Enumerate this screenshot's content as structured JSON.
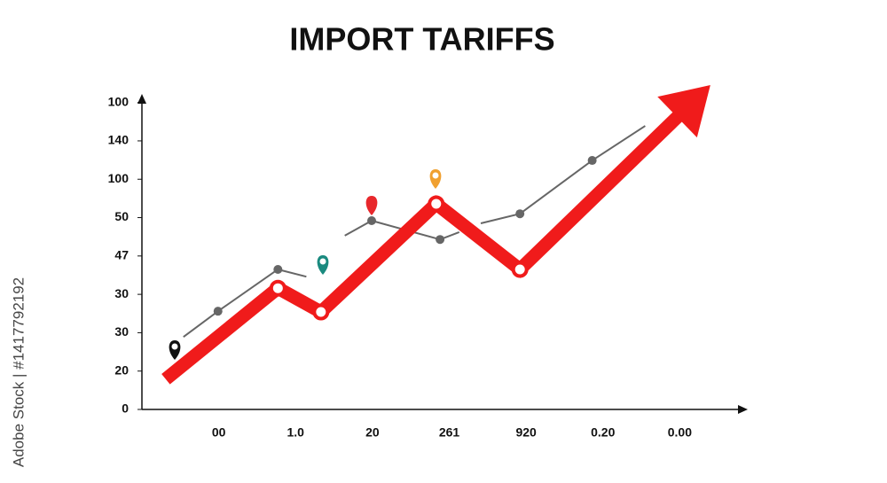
{
  "chart_data": {
    "type": "line",
    "title": "IMPORT TARIFFS",
    "watermark": "Adobe Stock | #1417792192",
    "xlim": [
      -1,
      6.85
    ],
    "xticks": [
      {
        "value": 0,
        "label": "00"
      },
      {
        "value": 1,
        "label": "1.0"
      },
      {
        "value": 2,
        "label": "20"
      },
      {
        "value": 3,
        "label": "261"
      },
      {
        "value": 4,
        "label": "920"
      },
      {
        "value": 5,
        "label": "0.20"
      },
      {
        "value": 6,
        "label": "0.00"
      }
    ],
    "ylim": [
      0,
      8.2
    ],
    "yticks": [
      0,
      {
        "value": 1,
        "label": "20"
      },
      {
        "value": 2,
        "label": "30"
      },
      {
        "value": 3,
        "label": "30"
      },
      {
        "value": 4,
        "label": "47"
      },
      {
        "value": 5,
        "label": "50"
      },
      {
        "value": 6,
        "label": "100"
      },
      {
        "value": 7,
        "label": "140"
      },
      {
        "value": 8,
        "label": "100"
      }
    ],
    "series": [
      {
        "color": "#f01b1b",
        "x": [
          -0.69,
          0.77,
          1.33,
          2.83,
          3.92,
          6.05
        ],
        "values": [
          0.79,
          3.16,
          2.54,
          5.36,
          3.65,
          7.78
        ]
      },
      {
        "color": "#666666",
        "x": [
          -0.46,
          -0.01,
          0.77,
          1.14,
          null,
          1.64,
          1.99,
          2.88,
          3.13,
          null,
          3.41,
          3.92,
          4.86,
          5.55
        ],
        "values": [
          1.89,
          2.56,
          3.65,
          3.46,
          null,
          4.53,
          4.92,
          4.43,
          4.62,
          null,
          4.85,
          5.1,
          6.49,
          7.39
        ]
      }
    ]
  }
}
